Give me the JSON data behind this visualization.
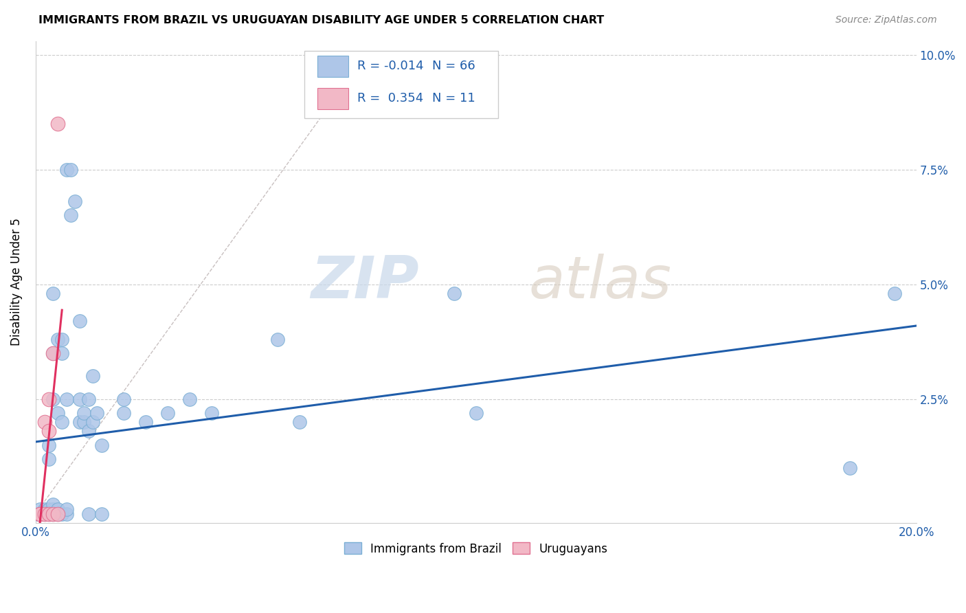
{
  "title": "IMMIGRANTS FROM BRAZIL VS URUGUAYAN DISABILITY AGE UNDER 5 CORRELATION CHART",
  "source": "Source: ZipAtlas.com",
  "ylabel": "Disability Age Under 5",
  "xlim": [
    0.0,
    0.2
  ],
  "ylim": [
    -0.002,
    0.103
  ],
  "xticks": [
    0.0,
    0.05,
    0.1,
    0.15,
    0.2
  ],
  "xticklabels": [
    "0.0%",
    "",
    "",
    "",
    "20.0%"
  ],
  "yticks": [
    0.025,
    0.05,
    0.075,
    0.1
  ],
  "yticklabels": [
    "2.5%",
    "5.0%",
    "7.5%",
    "10.0%"
  ],
  "brazil_color": "#aec6e8",
  "brazil_edge": "#7aaed4",
  "uruguay_color": "#f2b8c6",
  "uruguay_edge": "#e07090",
  "brazil_R": -0.014,
  "brazil_N": 66,
  "uruguay_R": 0.354,
  "uruguay_N": 11,
  "brazil_line_color": "#1f5daa",
  "uruguay_line_color": "#e03060",
  "dashed_line_color": "#c8c0c0",
  "watermark_zip": "ZIP",
  "watermark_atlas": "atlas",
  "brazil_points": [
    [
      0.0005,
      0.0
    ],
    [
      0.001,
      0.0
    ],
    [
      0.001,
      0.0
    ],
    [
      0.001,
      0.0
    ],
    [
      0.001,
      0.001
    ],
    [
      0.002,
      0.0
    ],
    [
      0.002,
      0.0
    ],
    [
      0.002,
      0.0
    ],
    [
      0.002,
      0.0
    ],
    [
      0.002,
      0.001
    ],
    [
      0.0025,
      0.0
    ],
    [
      0.003,
      0.0
    ],
    [
      0.003,
      0.0
    ],
    [
      0.003,
      0.0
    ],
    [
      0.003,
      0.0
    ],
    [
      0.003,
      0.001
    ],
    [
      0.003,
      0.012
    ],
    [
      0.003,
      0.015
    ],
    [
      0.0035,
      0.0
    ],
    [
      0.004,
      0.0
    ],
    [
      0.004,
      0.001
    ],
    [
      0.004,
      0.002
    ],
    [
      0.004,
      0.025
    ],
    [
      0.004,
      0.035
    ],
    [
      0.004,
      0.048
    ],
    [
      0.005,
      0.0
    ],
    [
      0.005,
      0.0
    ],
    [
      0.005,
      0.001
    ],
    [
      0.005,
      0.022
    ],
    [
      0.005,
      0.038
    ],
    [
      0.006,
      0.0
    ],
    [
      0.006,
      0.02
    ],
    [
      0.006,
      0.035
    ],
    [
      0.006,
      0.038
    ],
    [
      0.007,
      0.0
    ],
    [
      0.007,
      0.001
    ],
    [
      0.007,
      0.025
    ],
    [
      0.007,
      0.075
    ],
    [
      0.008,
      0.065
    ],
    [
      0.008,
      0.075
    ],
    [
      0.009,
      0.068
    ],
    [
      0.01,
      0.02
    ],
    [
      0.01,
      0.025
    ],
    [
      0.01,
      0.042
    ],
    [
      0.011,
      0.02
    ],
    [
      0.011,
      0.022
    ],
    [
      0.012,
      0.0
    ],
    [
      0.012,
      0.018
    ],
    [
      0.012,
      0.025
    ],
    [
      0.013,
      0.02
    ],
    [
      0.013,
      0.03
    ],
    [
      0.014,
      0.022
    ],
    [
      0.015,
      0.0
    ],
    [
      0.015,
      0.015
    ],
    [
      0.02,
      0.022
    ],
    [
      0.02,
      0.025
    ],
    [
      0.025,
      0.02
    ],
    [
      0.03,
      0.022
    ],
    [
      0.035,
      0.025
    ],
    [
      0.04,
      0.022
    ],
    [
      0.055,
      0.038
    ],
    [
      0.06,
      0.02
    ],
    [
      0.095,
      0.048
    ],
    [
      0.1,
      0.022
    ],
    [
      0.185,
      0.01
    ],
    [
      0.195,
      0.048
    ]
  ],
  "uruguay_points": [
    [
      0.001,
      0.0
    ],
    [
      0.001,
      0.0
    ],
    [
      0.002,
      0.0
    ],
    [
      0.002,
      0.02
    ],
    [
      0.003,
      0.0
    ],
    [
      0.003,
      0.018
    ],
    [
      0.003,
      0.025
    ],
    [
      0.004,
      0.0
    ],
    [
      0.004,
      0.035
    ],
    [
      0.005,
      0.0
    ],
    [
      0.005,
      0.085
    ]
  ]
}
